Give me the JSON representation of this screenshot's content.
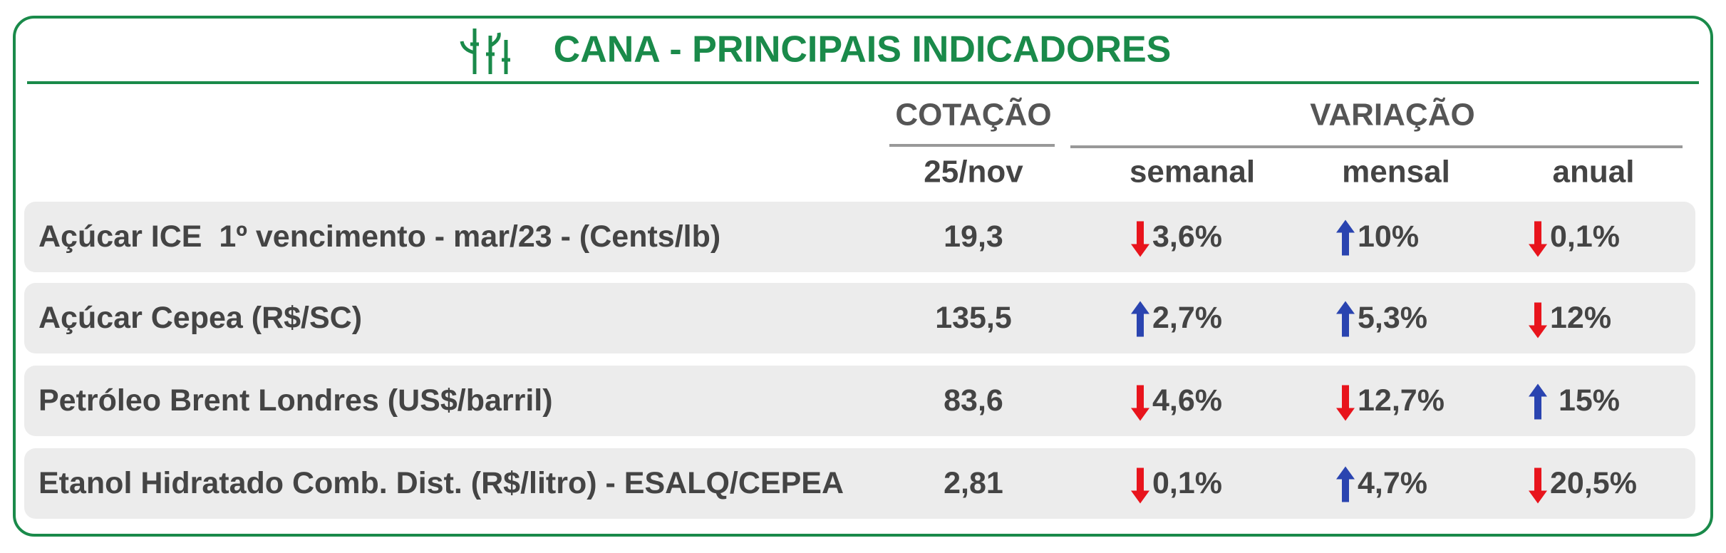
{
  "header": {
    "title": "CANA - PRINCIPAIS INDICADORES"
  },
  "table": {
    "column_groups": {
      "quote": "COTAÇÃO",
      "variation": "VARIAÇÃO"
    },
    "columns": [
      "25/nov",
      "semanal",
      "mensal",
      "anual"
    ],
    "rows": [
      {
        "label": "Açúcar ICE  1º vencimento - mar/23 - (Cents/lb)",
        "quote": "19,3",
        "changes": [
          {
            "text": "3,6%",
            "trend": "down"
          },
          {
            "text": "10%",
            "trend": "up"
          },
          {
            "text": "0,1%",
            "trend": "down"
          }
        ]
      },
      {
        "label": "Açúcar Cepea (R$/SC)",
        "quote": "135,5",
        "changes": [
          {
            "text": "2,7%",
            "trend": "up"
          },
          {
            "text": "5,3%",
            "trend": "up"
          },
          {
            "text": "12%",
            "trend": "down"
          }
        ]
      },
      {
        "label": "Petróleo Brent Londres (US$/barril)",
        "quote": "83,6",
        "changes": [
          {
            "text": "4,6%",
            "trend": "down"
          },
          {
            "text": "12,7%",
            "trend": "down"
          },
          {
            "text": " 15%",
            "trend": "up"
          }
        ]
      },
      {
        "label": "Etanol Hidratado Comb. Dist. (R$/litro) - ESALQ/CEPEA",
        "quote": "2,81",
        "changes": [
          {
            "text": "0,1%",
            "trend": "down"
          },
          {
            "text": "4,7%",
            "trend": "up"
          },
          {
            "text": "20,5%",
            "trend": "down"
          }
        ]
      }
    ]
  }
}
